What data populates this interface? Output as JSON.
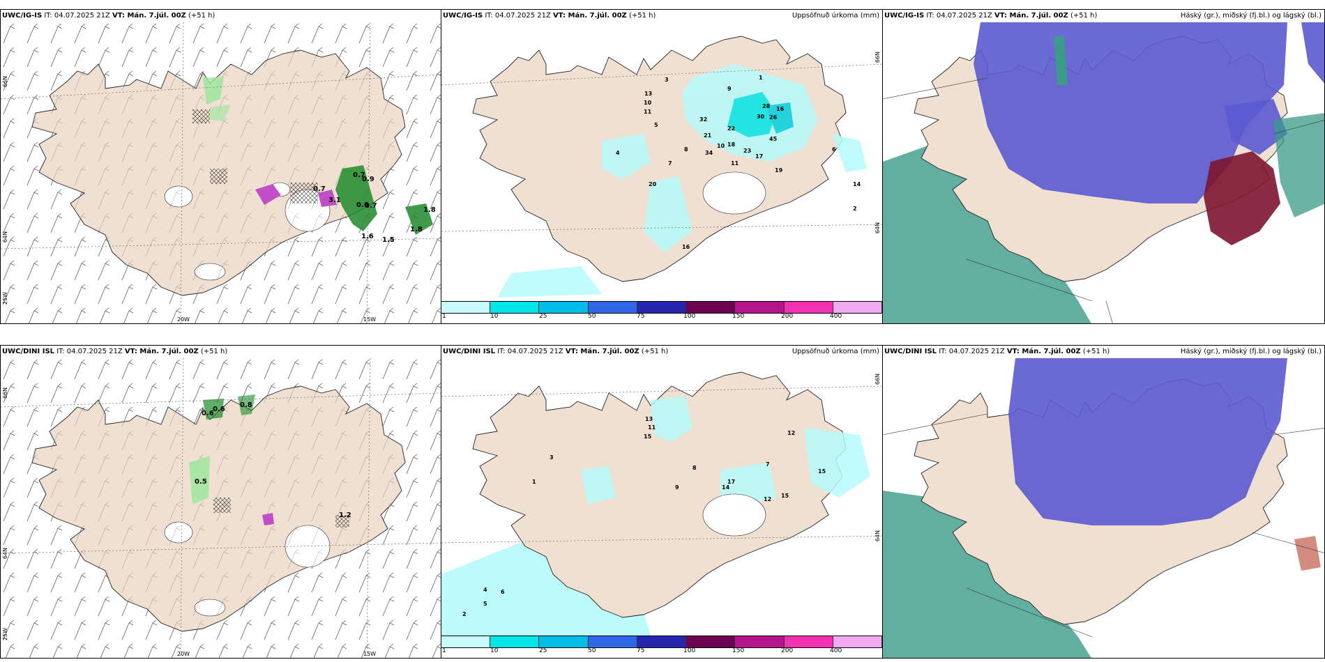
{
  "colors": {
    "land": "#efe0d2",
    "sea_precip": "#b6fafa",
    "cloud_high": "#5c5ad0",
    "cloud_mid": "#3b9a8a",
    "cloud_low": "#7d1530",
    "wind_green": "#1d8a2a",
    "wind_magenta": "#c24fc8"
  },
  "top_row": {
    "wind": {
      "model": "UWC/IG-IS",
      "it": " IT: 04.07.2025 21Z ",
      "vt": "VT: Mán. 7.júl. 00Z",
      "lead": " (+51 h)",
      "lat_labels": [
        "66N",
        "64N",
        "25W"
      ],
      "lon_labels": [
        "20W",
        "15W"
      ],
      "values": [
        "0.7",
        "0.9",
        "0.7",
        "3.1",
        "0.6",
        "0.7",
        "1.6",
        "1.5",
        "1.8",
        "1.8"
      ]
    },
    "precip": {
      "model": "UWC/IG-IS",
      "it": " IT: 04.07.2025 21Z ",
      "vt": "VT: Mán. 7.júl. 00Z",
      "lead": " (+51 h)",
      "title": "Uppsöfnuð úrkoma (mm)",
      "lat_labels": [
        "66N",
        "64N"
      ],
      "values": [
        "13",
        "10",
        "11",
        "32",
        "21",
        "22",
        "28",
        "16",
        "30",
        "26",
        "45",
        "34",
        "10",
        "18",
        "23",
        "17",
        "11",
        "19",
        "14",
        "16",
        "20",
        "3",
        "9",
        "1",
        "2",
        "5",
        "8",
        "4",
        "6",
        "7"
      ]
    },
    "clouds": {
      "model": "UWC/IG-IS",
      "it": " IT: 04.07.2025 21Z ",
      "vt": "VT: Mán. 7.júl. 00Z",
      "lead": " (+51 h)",
      "title": "Háský (gr.), miðský (fj.bl.) og lágský (bl.)"
    }
  },
  "bottom_row": {
    "wind": {
      "model": "UWC/DINI ISL",
      "it": " IT: 04.07.2025 21Z ",
      "vt": "VT: Mán. 7.júl. 00Z",
      "lead": " (+51 h)",
      "lat_labels": [
        "66N",
        "64N",
        "25W"
      ],
      "lon_labels": [
        "20W",
        "15W"
      ],
      "values": [
        "0.6",
        "0.6",
        "0.8",
        "0.5",
        "1.2"
      ]
    },
    "precip": {
      "model": "UWC/DINI ISL",
      "it": " IT: 04.07.2025 21Z ",
      "vt": "VT: Mán. 7.júl. 00Z",
      "lead": " (+51 h)",
      "title": "Uppsöfnuð úrkoma (mm)",
      "lat_labels": [
        "66N",
        "64N"
      ],
      "values": [
        "13",
        "11",
        "15",
        "12",
        "17",
        "14",
        "15",
        "12",
        "15",
        "6",
        "8",
        "5",
        "4",
        "2",
        "3",
        "1",
        "9",
        "7"
      ]
    },
    "clouds": {
      "model": "UWC/DINI ISL",
      "it": " IT: 04.07.2025 21Z ",
      "vt": "VT: Mán. 7.júl. 00Z",
      "lead": " (+51 h)",
      "title": "Háský (gr.), miðský (fj.bl.) og lágský (bl.)"
    }
  },
  "legend": {
    "ticks": [
      "1",
      "10",
      "25",
      "50",
      "75",
      "100",
      "150",
      "200",
      "400"
    ],
    "colors": [
      "#c8fcfc",
      "#00e5e5",
      "#00bde8",
      "#2f67e6",
      "#2626b0",
      "#6e0050",
      "#b4148e",
      "#f032b2",
      "#f0aaf0"
    ]
  }
}
